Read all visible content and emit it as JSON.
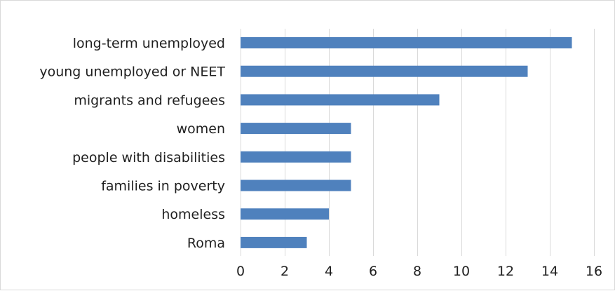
{
  "chart_data": {
    "type": "bar",
    "orientation": "horizontal",
    "categories": [
      "long-term unemployed",
      "young unemployed or NEET",
      "migrants and refugees",
      "women",
      "people with disabilities",
      "families in poverty",
      "homeless",
      "Roma"
    ],
    "values": [
      15,
      13,
      9,
      5,
      5,
      5,
      4,
      3
    ],
    "xlim": [
      0,
      16
    ],
    "xticks": [
      0,
      2,
      4,
      6,
      8,
      10,
      12,
      14,
      16
    ],
    "title": "",
    "xlabel": "",
    "ylabel": "",
    "grid": "vertical",
    "bar_color": "#4f81bd",
    "grid_color": "#d9d9d9"
  }
}
